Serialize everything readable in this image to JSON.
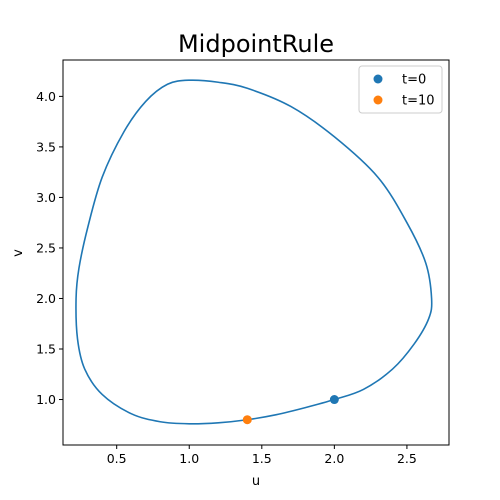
{
  "chart_data": {
    "type": "line",
    "title": "MidpointRule",
    "xlabel": "u",
    "ylabel": "v",
    "xlim": [
      0.13,
      2.79
    ],
    "ylim": [
      0.55,
      4.36
    ],
    "xticks": [
      0.5,
      1.0,
      1.5,
      2.0,
      2.5
    ],
    "xtick_labels": [
      "0.5",
      "1.0",
      "1.5",
      "2.0",
      "2.5"
    ],
    "yticks": [
      1.0,
      1.5,
      2.0,
      2.5,
      3.0,
      3.5,
      4.0
    ],
    "ytick_labels": [
      "1.0",
      "1.5",
      "2.0",
      "2.5",
      "3.0",
      "3.5",
      "4.0"
    ],
    "grid": false,
    "legend_position": "top-right",
    "series": [
      {
        "kind": "line",
        "color": "#1f77b4",
        "points": [
          [
            2.0,
            1.0
          ],
          [
            2.2,
            1.1
          ],
          [
            2.4,
            1.3
          ],
          [
            2.55,
            1.55
          ],
          [
            2.65,
            1.8
          ],
          [
            2.67,
            2.0
          ],
          [
            2.63,
            2.35
          ],
          [
            2.5,
            2.75
          ],
          [
            2.3,
            3.2
          ],
          [
            2.0,
            3.6
          ],
          [
            1.7,
            3.9
          ],
          [
            1.4,
            4.08
          ],
          [
            1.2,
            4.14
          ],
          [
            1.0,
            4.16
          ],
          [
            0.85,
            4.12
          ],
          [
            0.7,
            3.95
          ],
          [
            0.55,
            3.65
          ],
          [
            0.4,
            3.2
          ],
          [
            0.3,
            2.7
          ],
          [
            0.24,
            2.3
          ],
          [
            0.22,
            2.0
          ],
          [
            0.23,
            1.6
          ],
          [
            0.28,
            1.3
          ],
          [
            0.4,
            1.05
          ],
          [
            0.6,
            0.86
          ],
          [
            0.8,
            0.78
          ],
          [
            1.0,
            0.76
          ],
          [
            1.2,
            0.77
          ],
          [
            1.4,
            0.8
          ],
          [
            1.6,
            0.85
          ],
          [
            1.8,
            0.92
          ],
          [
            2.0,
            1.0
          ]
        ]
      },
      {
        "kind": "point",
        "name": "t=0",
        "color": "#1f77b4",
        "x": 2.0,
        "y": 1.0
      },
      {
        "kind": "point",
        "name": "t=10",
        "color": "#ff7f0e",
        "x": 1.4,
        "y": 0.8
      }
    ]
  }
}
